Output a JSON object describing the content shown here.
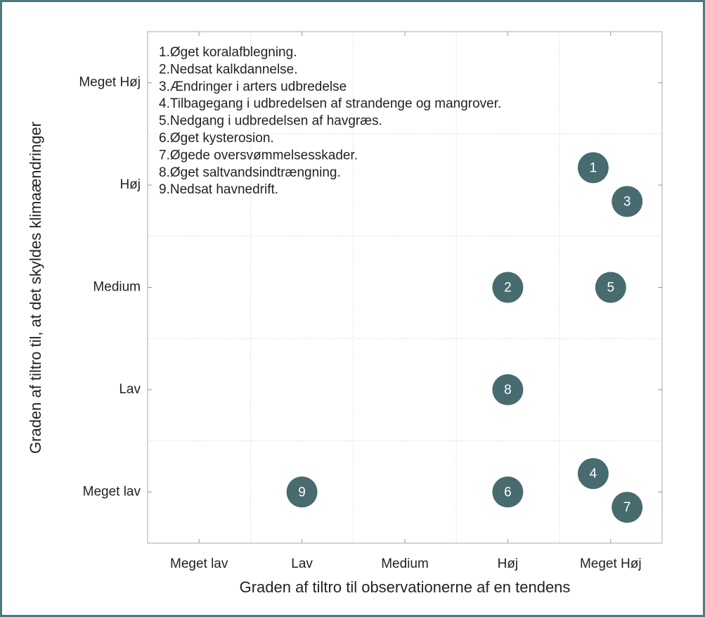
{
  "chart_data": {
    "type": "scatter",
    "xlabel": "Graden af tiltro til observationerne af en tendens",
    "ylabel": "Graden af tiltro til, at det skyldes klimaændringer",
    "xlim": [
      -0.5,
      4.5
    ],
    "ylim": [
      -0.5,
      4.5
    ],
    "xticks": [
      {
        "value": 0,
        "label": "Meget lav"
      },
      {
        "value": 1,
        "label": "Lav"
      },
      {
        "value": 2,
        "label": "Medium"
      },
      {
        "value": 3,
        "label": "Høj"
      },
      {
        "value": 4,
        "label": "Meget Høj"
      }
    ],
    "yticks": [
      {
        "value": 0,
        "label": "Meget lav"
      },
      {
        "value": 1,
        "label": "Lav"
      },
      {
        "value": 2,
        "label": "Medium"
      },
      {
        "value": 3,
        "label": "Høj"
      },
      {
        "value": 4,
        "label": "Meget Høj"
      }
    ],
    "grid": true,
    "color": "#476b6f",
    "x": [
      3.83,
      3,
      4.16,
      3.83,
      4,
      3,
      4.16,
      3,
      1
    ],
    "y": [
      3.17,
      2,
      2.84,
      0.18,
      2,
      0,
      -0.15,
      1,
      0
    ],
    "labels": [
      "1",
      "2",
      "3",
      "4",
      "5",
      "6",
      "7",
      "8",
      "9"
    ],
    "notes": [
      "1.Øget koralafblegning.",
      "2.Nedsat kalkdannelse.",
      "3.Ændringer i arters udbredelse",
      "4.Tilbagegang i udbredelsen af strandenge og mangrover.",
      "5.Nedgang i udbredelsen af havgræs.",
      "6.Øget kysterosion.",
      "7.Øgede oversvømmelsesskader.",
      "8.Øget saltvandsindtrængning.",
      "9.Nedsat havnedrift."
    ]
  }
}
